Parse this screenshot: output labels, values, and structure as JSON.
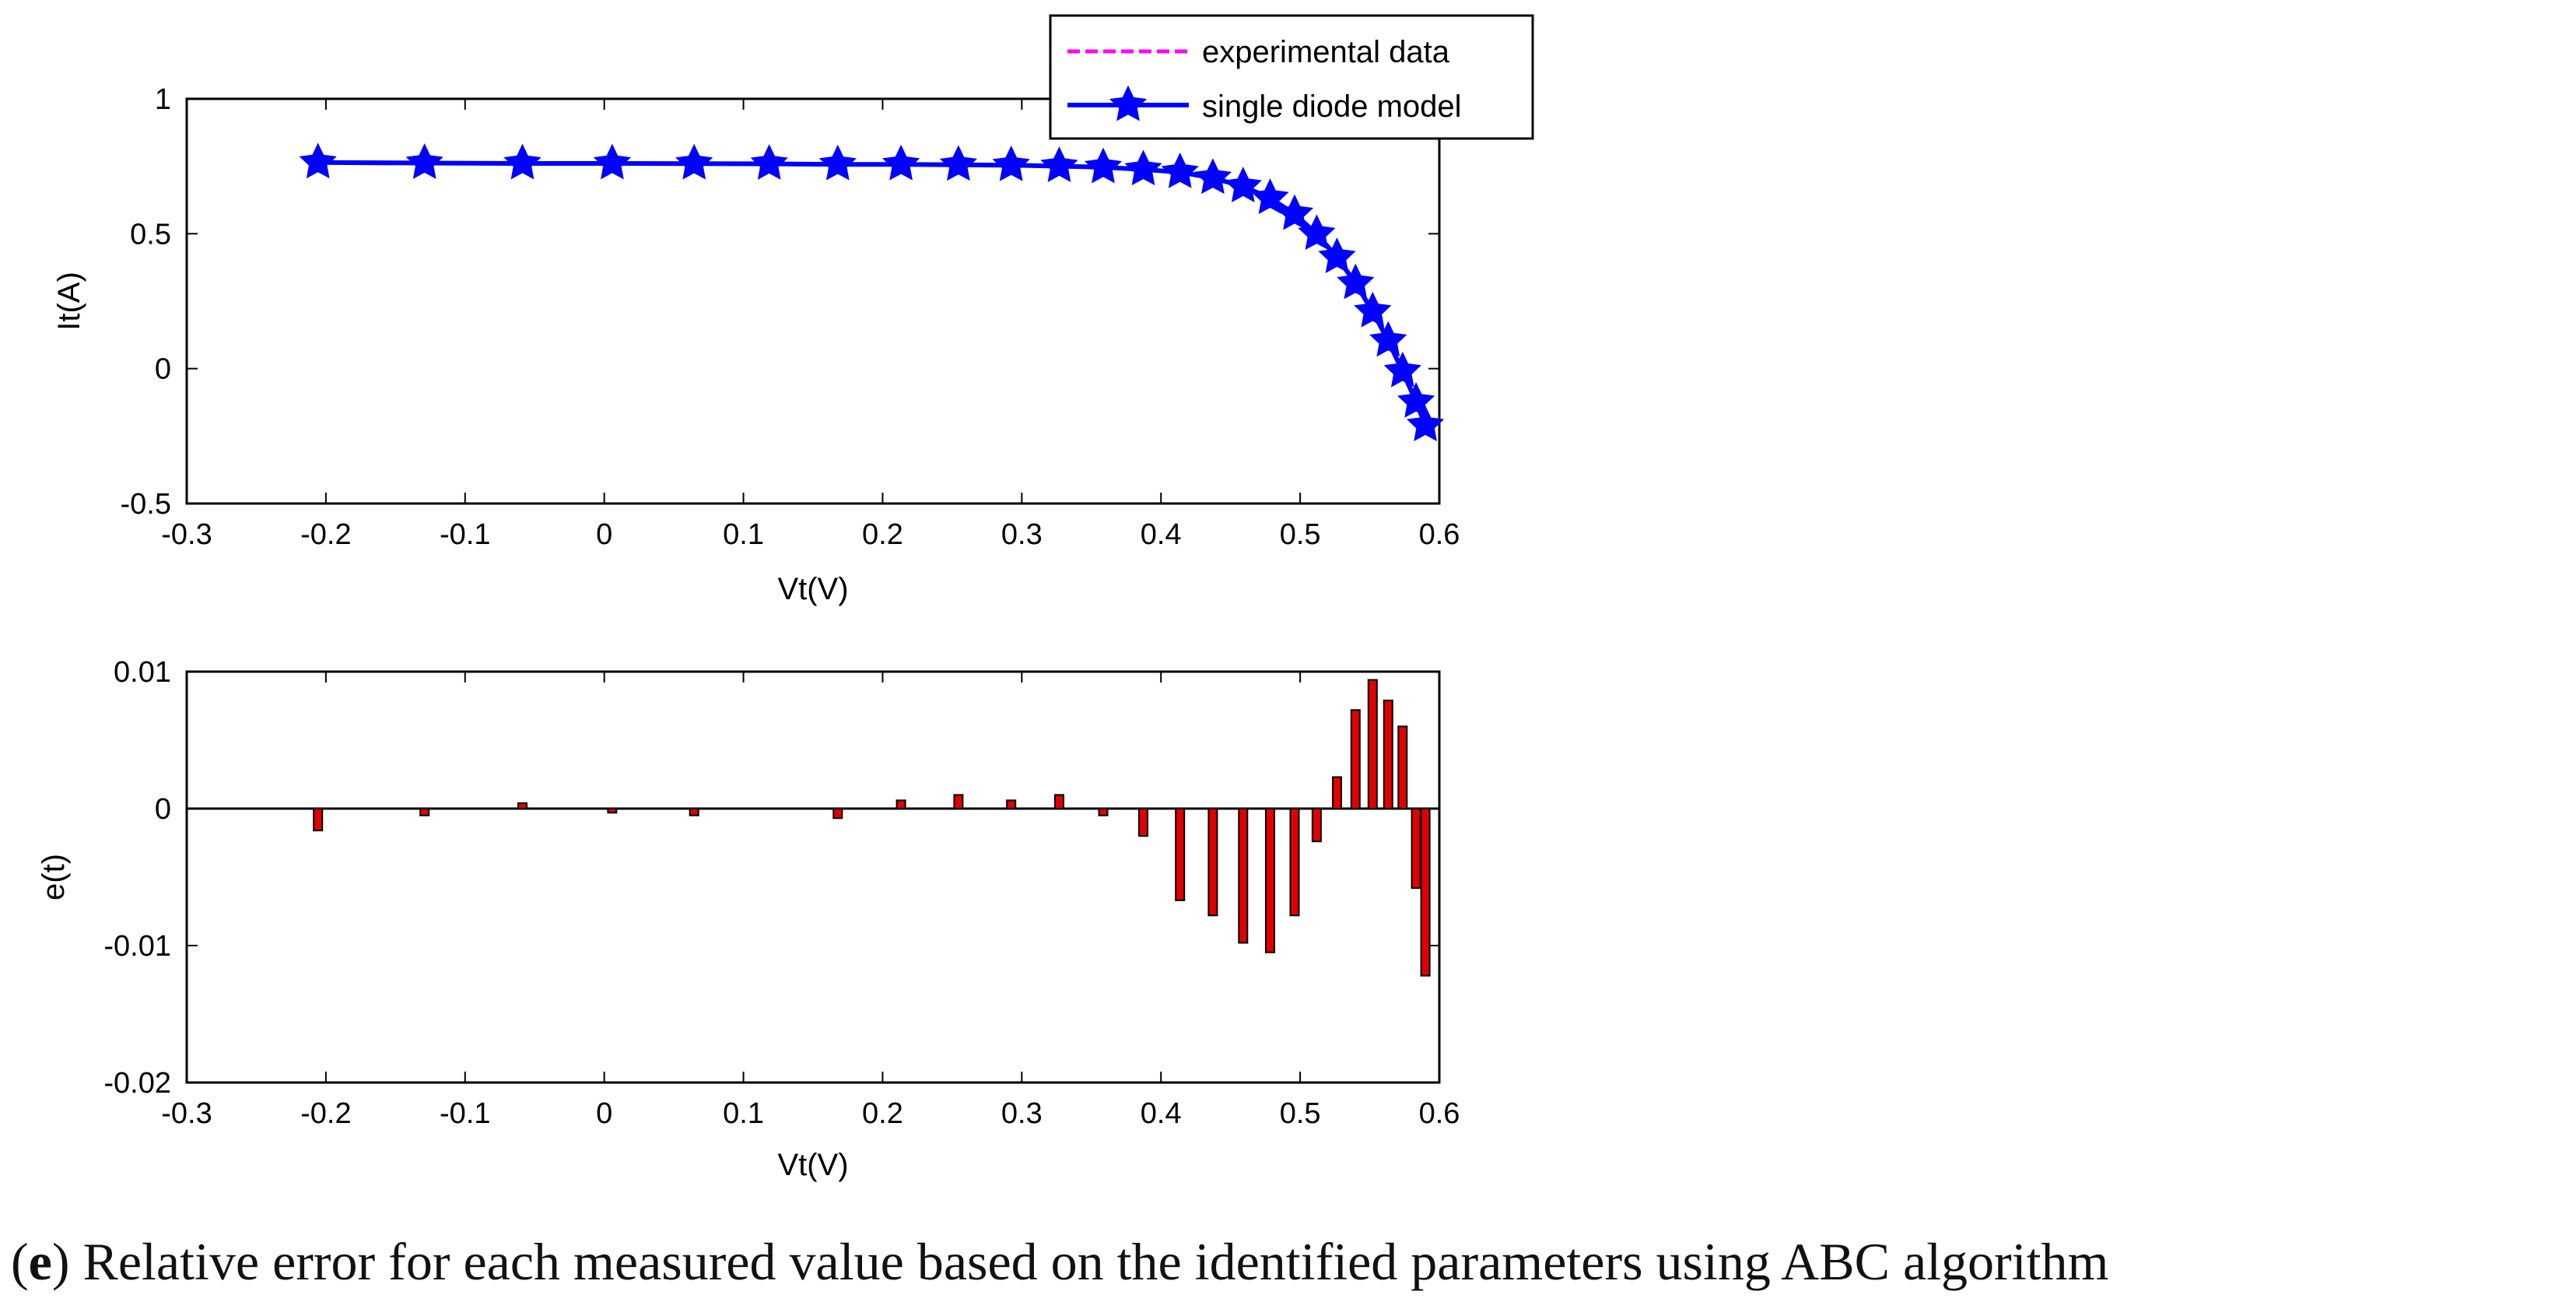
{
  "chart_data": [
    {
      "type": "line",
      "title": "",
      "xlabel": "Vt(V)",
      "ylabel": "It(A)",
      "xlim": [
        -0.3,
        0.6
      ],
      "ylim": [
        -0.5,
        1
      ],
      "xticks": [
        "-0.3",
        "-0.2",
        "-0.1",
        "0",
        "0.1",
        "0.2",
        "0.3",
        "0.4",
        "0.5",
        "0.6"
      ],
      "yticks": [
        "-0.5",
        "0",
        "0.5",
        "1"
      ],
      "legend": {
        "placement": "top-right",
        "entries": [
          "experimental data",
          "single diode model"
        ]
      },
      "series": [
        {
          "name": "experimental data",
          "color": "#ff00ff",
          "style": "dashed",
          "x": [
            -0.2057,
            -0.1291,
            -0.0588,
            0.0057,
            0.0646,
            0.1185,
            0.1678,
            0.2132,
            0.2545,
            0.2924,
            0.3269,
            0.3585,
            0.3873,
            0.4137,
            0.4373,
            0.459,
            0.4784,
            0.496,
            0.5119,
            0.5265,
            0.5398,
            0.5521,
            0.5633,
            0.5736,
            0.5833,
            0.59
          ],
          "y": [
            0.764,
            0.762,
            0.7605,
            0.7605,
            0.76,
            0.759,
            0.757,
            0.757,
            0.7555,
            0.754,
            0.7505,
            0.7465,
            0.7385,
            0.728,
            0.7065,
            0.6755,
            0.632,
            0.573,
            0.499,
            0.413,
            0.3165,
            0.212,
            0.1035,
            -0.01,
            -0.123,
            -0.21
          ]
        },
        {
          "name": "single diode model",
          "color": "#0000ff",
          "style": "solid",
          "marker": "star",
          "x": [
            -0.2057,
            -0.1291,
            -0.0588,
            0.0057,
            0.0646,
            0.1185,
            0.1678,
            0.2132,
            0.2545,
            0.2924,
            0.3269,
            0.3585,
            0.3873,
            0.4137,
            0.4373,
            0.459,
            0.4784,
            0.496,
            0.5119,
            0.5265,
            0.5398,
            0.5521,
            0.5633,
            0.5736,
            0.5833,
            0.59
          ],
          "y": [
            0.764,
            0.762,
            0.7605,
            0.7605,
            0.76,
            0.759,
            0.757,
            0.757,
            0.7555,
            0.754,
            0.7505,
            0.7465,
            0.7385,
            0.728,
            0.7065,
            0.6755,
            0.632,
            0.573,
            0.499,
            0.413,
            0.3165,
            0.212,
            0.1035,
            -0.01,
            -0.123,
            -0.21
          ]
        }
      ]
    },
    {
      "type": "bar",
      "title": "",
      "xlabel": "Vt(V)",
      "ylabel": "e(t)",
      "xlim": [
        -0.3,
        0.6
      ],
      "ylim": [
        -0.02,
        0.01
      ],
      "xticks": [
        "-0.3",
        "-0.2",
        "-0.1",
        "0",
        "0.1",
        "0.2",
        "0.3",
        "0.4",
        "0.5",
        "0.6"
      ],
      "yticks": [
        "-0.02",
        "-0.01",
        "0",
        "0.01"
      ],
      "bar_color": "#e00000",
      "series": [
        {
          "name": "e(t)",
          "x": [
            -0.2057,
            -0.1291,
            -0.0588,
            0.0057,
            0.0646,
            0.1185,
            0.1678,
            0.2132,
            0.2545,
            0.2924,
            0.3269,
            0.3585,
            0.3873,
            0.4137,
            0.4373,
            0.459,
            0.4784,
            0.496,
            0.5119,
            0.5265,
            0.5398,
            0.5521,
            0.5633,
            0.5736,
            0.5833,
            0.59
          ],
          "values": [
            -0.0016,
            -0.0005,
            0.0004,
            -0.0003,
            -0.0005,
            0.0,
            -0.0007,
            0.0006,
            0.001,
            0.0006,
            0.001,
            -0.0005,
            -0.002,
            -0.0067,
            -0.0078,
            -0.0098,
            -0.0105,
            -0.0078,
            -0.0024,
            0.0023,
            0.0072,
            0.0094,
            0.0079,
            0.006,
            -0.0058,
            -0.0122
          ]
        }
      ]
    }
  ],
  "caption": {
    "paren_open": "(",
    "letter": "e",
    "text": ") Relative error for each measured value based on the identified parameters using ABC algorithm"
  }
}
